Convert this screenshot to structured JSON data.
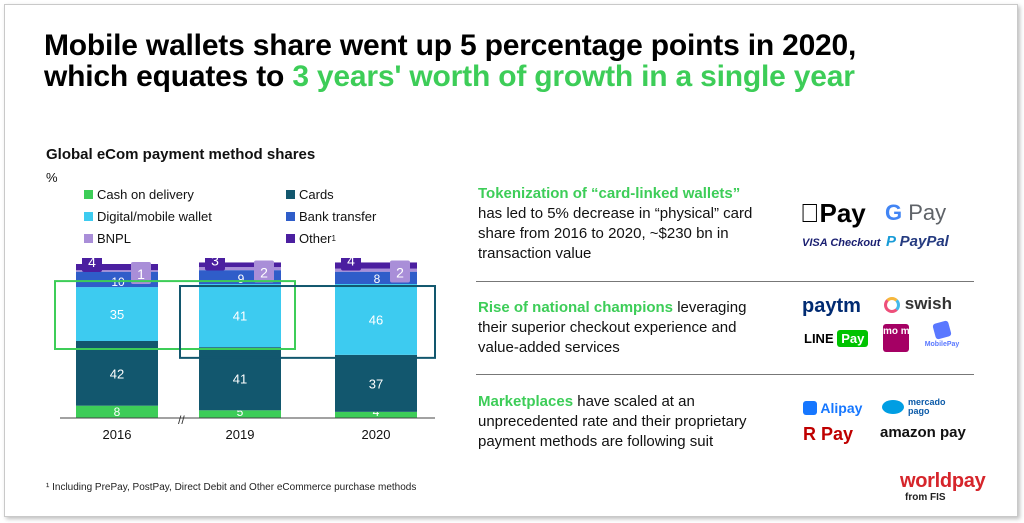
{
  "headline": {
    "line1": "Mobile wallets share went up 5 percentage points in 2020,",
    "line2_prefix": "which equates to ",
    "line2_highlight": "3 years' worth of growth in a single year"
  },
  "chart_subtitle": "Global eCom payment method shares",
  "unit": "%",
  "legend": {
    "cod": "Cash on delivery",
    "cards": "Cards",
    "wallet": "Digital/mobile wallet",
    "bank": "Bank transfer",
    "bnpl": "BNPL",
    "other": "Other",
    "other_sup": "1"
  },
  "colors": {
    "cod": "#3dcd58",
    "cards": "#12576e",
    "wallet": "#3dcbf0",
    "bank": "#2f5dc9",
    "bnpl": "#a98ed8",
    "other": "#4b1fa0",
    "accent": "#3dcd58",
    "brand": "#d6252b"
  },
  "chart_data": {
    "type": "bar",
    "stacked": true,
    "categories": [
      "2016",
      "2019",
      "2020"
    ],
    "series": [
      {
        "name": "Cash on delivery",
        "values": [
          8,
          5,
          4
        ]
      },
      {
        "name": "Cards",
        "values": [
          42,
          41,
          37
        ]
      },
      {
        "name": "Digital/mobile wallet",
        "values": [
          35,
          41,
          46
        ]
      },
      {
        "name": "Bank transfer",
        "values": [
          10,
          9,
          8
        ]
      },
      {
        "name": "BNPL",
        "values": [
          1,
          2,
          2
        ]
      },
      {
        "name": "Other",
        "values": [
          4,
          3,
          4
        ]
      }
    ],
    "axis_break_label": "//",
    "highlight": [
      "Digital/mobile wallet 2016-2019",
      "Digital/mobile wallet 2019-2020"
    ]
  },
  "points": [
    {
      "highlight": "Tokenization of “card-linked wallets”",
      "line2": "has led to 5% decrease in “physical” card",
      "line3": "share from 2016 to 2020, ~$230 bn in",
      "line4": "transaction value"
    },
    {
      "highlight": "Rise of national champions",
      "line1_rest": " leveraging",
      "line2": "their superior checkout experience and",
      "line3": "value-added services"
    },
    {
      "highlight": "Marketplaces",
      "line1_rest": " have scaled at an",
      "line2": "unprecedented rate and their proprietary",
      "line3": "payment methods are following suit"
    }
  ],
  "logos": {
    "applepay": "Pay",
    "googlepay_g": "G",
    "googlepay_text": "Pay",
    "visa_checkout": "VISA Checkout",
    "paypal": "PayPal",
    "paytm": "paytm",
    "swish": "swish",
    "linepay_line": "LINE",
    "linepay_pay": "Pay",
    "momo": "mo mo",
    "mobilepay": "MobilePay",
    "alipay": "Alipay",
    "mercadopago": "mercado pago",
    "rpay": "R Pay",
    "amazonpay": "amazon pay"
  },
  "footnote": "¹ Including PrePay, PostPay, Direct Debit and Other eCommerce purchase methods",
  "brand": "worldpay",
  "brand_sub": "from FIS"
}
